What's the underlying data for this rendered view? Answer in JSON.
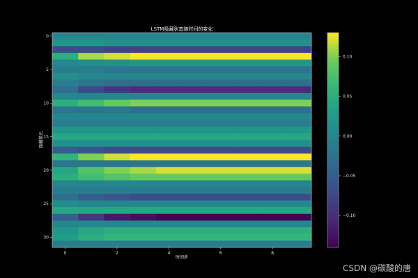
{
  "watermark": "CSDN @碳酸的唐",
  "chart_data": {
    "type": "heatmap",
    "title": "LSTM隐藏状态随时间的变化",
    "xlabel": "时间步",
    "ylabel": "隐藏单元",
    "colormap": "viridis",
    "vmin": -0.14,
    "vmax": 0.13,
    "x_ticks": [
      0,
      2,
      4,
      6,
      8
    ],
    "y_ticks": [
      0,
      5,
      10,
      15,
      20,
      25,
      30
    ],
    "colorbar_ticks": [
      {
        "value": 0.1,
        "label": "0.10"
      },
      {
        "value": 0.05,
        "label": "0.05"
      },
      {
        "value": 0.0,
        "label": "0.00"
      },
      {
        "value": -0.05,
        "label": "−0.05"
      },
      {
        "value": -0.1,
        "label": "−0.10"
      }
    ],
    "num_timesteps": 10,
    "num_units": 32,
    "rows": [
      [
        0.0,
        0.0,
        0.0,
        0.0,
        0.0,
        0.0,
        0.0,
        0.0,
        0.0,
        0.0
      ],
      [
        0.02,
        0.02,
        0.01,
        0.01,
        0.01,
        0.01,
        0.01,
        0.01,
        0.01,
        0.01
      ],
      [
        -0.07,
        -0.07,
        -0.08,
        -0.08,
        -0.08,
        -0.08,
        -0.08,
        -0.08,
        -0.08,
        -0.08
      ],
      [
        0.05,
        0.11,
        0.12,
        0.13,
        0.13,
        0.13,
        0.13,
        0.13,
        0.13,
        0.13
      ],
      [
        0.0,
        0.01,
        0.01,
        0.02,
        0.02,
        0.02,
        0.02,
        0.02,
        0.02,
        0.02
      ],
      [
        -0.01,
        -0.01,
        -0.02,
        -0.02,
        -0.02,
        -0.02,
        -0.02,
        -0.02,
        -0.02,
        -0.02
      ],
      [
        0.01,
        0.0,
        0.0,
        0.0,
        0.0,
        0.0,
        0.0,
        0.0,
        0.0,
        0.0
      ],
      [
        -0.01,
        -0.02,
        -0.03,
        -0.03,
        -0.03,
        -0.03,
        -0.03,
        -0.03,
        -0.03,
        -0.03
      ],
      [
        -0.03,
        -0.07,
        -0.09,
        -0.1,
        -0.1,
        -0.1,
        -0.1,
        -0.1,
        -0.1,
        -0.1
      ],
      [
        0.0,
        0.0,
        0.0,
        0.0,
        0.0,
        0.0,
        0.0,
        0.0,
        0.0,
        0.0
      ],
      [
        0.05,
        0.07,
        0.09,
        0.1,
        0.1,
        0.1,
        0.1,
        0.1,
        0.1,
        0.1
      ],
      [
        -0.02,
        -0.02,
        -0.02,
        -0.03,
        -0.03,
        -0.03,
        -0.03,
        -0.03,
        -0.03,
        -0.03
      ],
      [
        0.0,
        0.0,
        0.0,
        0.0,
        0.0,
        0.0,
        0.0,
        0.0,
        0.0,
        0.0
      ],
      [
        -0.01,
        -0.01,
        -0.01,
        -0.01,
        -0.01,
        -0.01,
        -0.01,
        -0.01,
        -0.01,
        -0.01
      ],
      [
        0.02,
        0.02,
        0.02,
        0.02,
        0.02,
        0.02,
        0.02,
        0.02,
        0.02,
        0.02
      ],
      [
        0.04,
        0.04,
        0.04,
        0.04,
        0.04,
        0.04,
        0.04,
        0.04,
        0.04,
        0.04
      ],
      [
        0.01,
        0.01,
        0.01,
        0.01,
        0.01,
        0.01,
        0.01,
        0.01,
        0.01,
        0.01
      ],
      [
        -0.05,
        -0.06,
        -0.07,
        -0.07,
        -0.07,
        -0.07,
        -0.07,
        -0.07,
        -0.07,
        -0.07
      ],
      [
        0.06,
        0.1,
        0.12,
        0.13,
        0.13,
        0.13,
        0.13,
        0.13,
        0.13,
        0.13
      ],
      [
        -0.02,
        -0.02,
        -0.02,
        -0.02,
        -0.02,
        -0.02,
        -0.02,
        -0.02,
        -0.02,
        -0.02
      ],
      [
        0.04,
        0.08,
        0.1,
        0.11,
        0.12,
        0.12,
        0.12,
        0.12,
        0.12,
        0.12
      ],
      [
        0.05,
        0.07,
        0.08,
        0.09,
        0.09,
        0.09,
        0.09,
        0.09,
        0.09,
        0.09
      ],
      [
        0.0,
        0.0,
        0.0,
        0.0,
        0.0,
        0.0,
        0.0,
        0.0,
        0.0,
        0.0
      ],
      [
        -0.01,
        -0.01,
        -0.01,
        -0.01,
        -0.01,
        -0.01,
        -0.01,
        -0.01,
        -0.01,
        -0.01
      ],
      [
        -0.03,
        -0.05,
        -0.06,
        -0.07,
        -0.07,
        -0.07,
        -0.07,
        -0.07,
        -0.07,
        -0.07
      ],
      [
        0.01,
        0.0,
        0.0,
        0.0,
        0.0,
        0.0,
        0.0,
        0.0,
        0.0,
        0.0
      ],
      [
        0.04,
        0.04,
        0.04,
        0.04,
        0.04,
        0.04,
        0.04,
        0.04,
        0.04,
        0.04
      ],
      [
        -0.05,
        -0.09,
        -0.12,
        -0.13,
        -0.14,
        -0.14,
        -0.14,
        -0.14,
        -0.14,
        -0.14
      ],
      [
        0.0,
        0.0,
        0.0,
        0.0,
        0.0,
        0.0,
        0.0,
        0.0,
        0.0,
        0.0
      ],
      [
        0.02,
        0.04,
        0.05,
        0.05,
        0.05,
        0.05,
        0.05,
        0.05,
        0.05,
        0.05
      ],
      [
        0.03,
        0.05,
        0.06,
        0.06,
        0.06,
        0.06,
        0.06,
        0.06,
        0.06,
        0.06
      ],
      [
        -0.01,
        -0.01,
        -0.01,
        -0.01,
        -0.01,
        -0.01,
        -0.01,
        -0.01,
        -0.01,
        -0.01
      ]
    ]
  }
}
